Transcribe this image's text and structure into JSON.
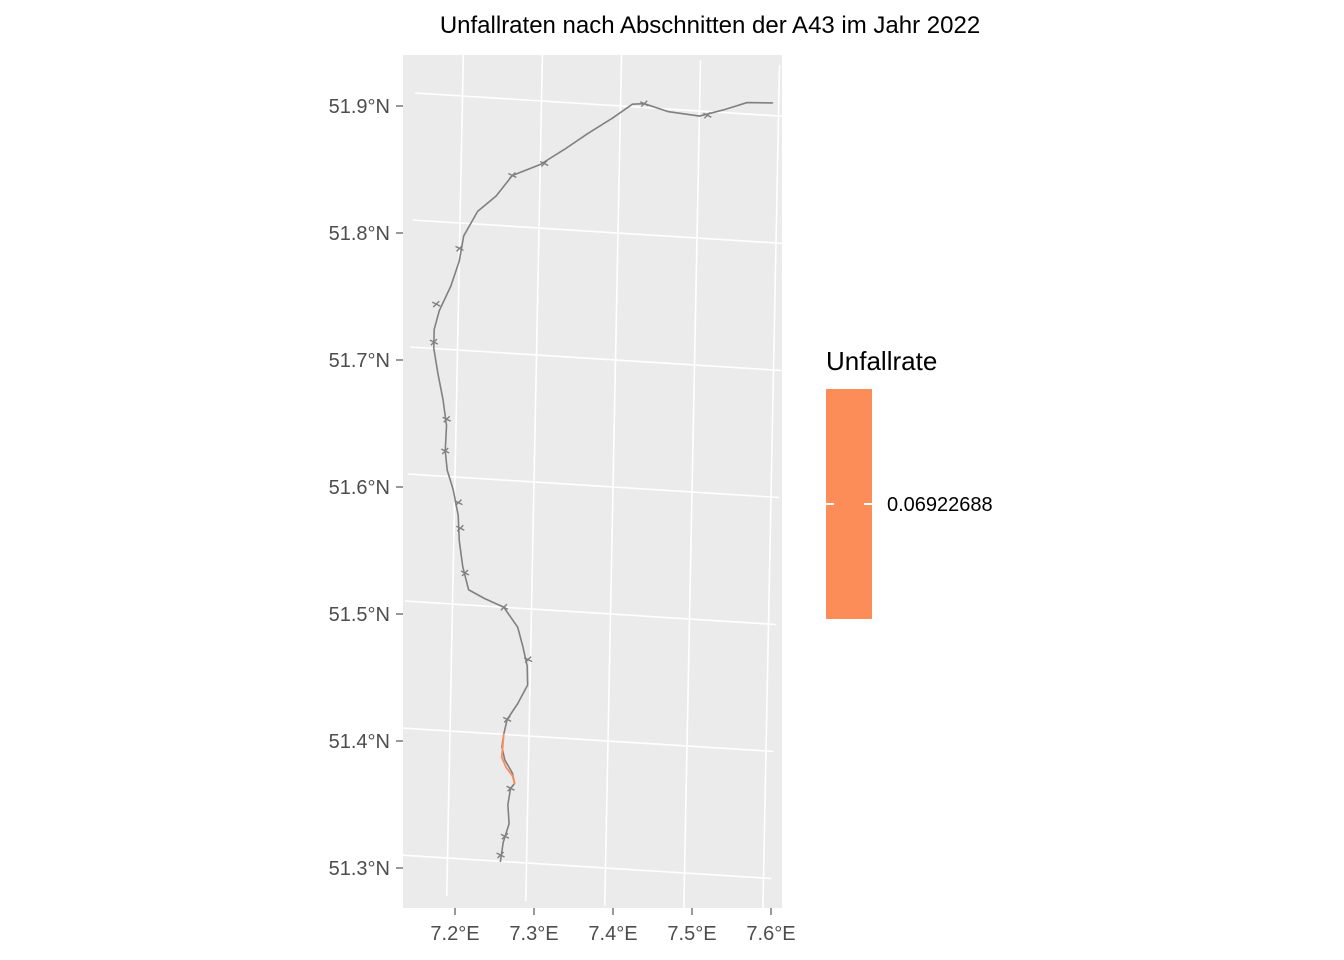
{
  "title": "Unfallraten nach Abschnitten der A43 im Jahr 2022",
  "axes": {
    "lon_ticks": [
      "7.2°E",
      "7.3°E",
      "7.4°E",
      "7.5°E",
      "7.6°E"
    ],
    "lat_ticks": [
      "51.3°N",
      "51.4°N",
      "51.5°N",
      "51.6°N",
      "51.7°N",
      "51.8°N",
      "51.9°N"
    ]
  },
  "legend": {
    "title": "Unfallrate",
    "value_label": "0.06922688",
    "color": "#FC8D59"
  },
  "colors": {
    "panel_background": "#EBEBEB",
    "grid": "#FFFFFF",
    "route_default": "#808080",
    "route_highlight": "#FC8D59"
  },
  "map_data": {
    "type": "route-map",
    "road": "A43",
    "year": 2022,
    "lon_range": [
      7.14,
      7.61
    ],
    "lat_range": [
      51.27,
      51.94
    ],
    "route": [
      [
        7.267,
        51.3
      ],
      [
        7.27,
        51.315
      ],
      [
        7.277,
        51.33
      ],
      [
        7.275,
        51.345
      ],
      [
        7.278,
        51.358
      ],
      [
        7.283,
        51.362
      ],
      [
        7.28,
        51.37
      ],
      [
        7.27,
        51.38
      ],
      [
        7.266,
        51.39
      ],
      [
        7.268,
        51.4
      ],
      [
        7.272,
        51.412
      ],
      [
        7.285,
        51.425
      ],
      [
        7.297,
        51.44
      ],
      [
        7.296,
        51.455
      ],
      [
        7.29,
        51.47
      ],
      [
        7.283,
        51.485
      ],
      [
        7.265,
        51.5
      ],
      [
        7.24,
        51.506
      ],
      [
        7.22,
        51.512
      ],
      [
        7.212,
        51.53
      ],
      [
        7.207,
        51.55
      ],
      [
        7.205,
        51.57
      ],
      [
        7.198,
        51.59
      ],
      [
        7.19,
        51.605
      ],
      [
        7.187,
        51.62
      ],
      [
        7.188,
        51.64
      ],
      [
        7.183,
        51.66
      ],
      [
        7.176,
        51.68
      ],
      [
        7.17,
        51.7
      ],
      [
        7.17,
        51.715
      ],
      [
        7.176,
        51.73
      ],
      [
        7.19,
        51.75
      ],
      [
        7.2,
        51.77
      ],
      [
        7.205,
        51.79
      ],
      [
        7.222,
        51.81
      ],
      [
        7.245,
        51.823
      ],
      [
        7.265,
        51.84
      ],
      [
        7.3,
        51.85
      ],
      [
        7.33,
        51.863
      ],
      [
        7.36,
        51.877
      ],
      [
        7.39,
        51.89
      ],
      [
        7.415,
        51.902
      ],
      [
        7.43,
        51.903
      ],
      [
        7.46,
        51.898
      ],
      [
        7.5,
        51.896
      ],
      [
        7.53,
        51.902
      ],
      [
        7.56,
        51.909
      ],
      [
        7.592,
        51.91
      ]
    ],
    "segments": [
      {
        "rate": 0.06922688,
        "points": [
          [
            7.268,
            51.4
          ],
          [
            7.267,
            51.39
          ],
          [
            7.266,
            51.382
          ],
          [
            7.272,
            51.374
          ],
          [
            7.28,
            51.368
          ],
          [
            7.283,
            51.362
          ]
        ]
      }
    ],
    "interchanges": [
      [
        7.267,
        51.305
      ],
      [
        7.272,
        51.32
      ],
      [
        7.278,
        51.358
      ],
      [
        7.272,
        51.412
      ],
      [
        7.297,
        51.46
      ],
      [
        7.265,
        51.5
      ],
      [
        7.215,
        51.525
      ],
      [
        7.208,
        51.56
      ],
      [
        7.205,
        51.58
      ],
      [
        7.187,
        51.62
      ],
      [
        7.188,
        51.645
      ],
      [
        7.17,
        51.705
      ],
      [
        7.172,
        51.735
      ],
      [
        7.2,
        51.78
      ],
      [
        7.265,
        51.84
      ],
      [
        7.305,
        51.851
      ],
      [
        7.43,
        51.903
      ],
      [
        7.51,
        51.897
      ]
    ]
  }
}
